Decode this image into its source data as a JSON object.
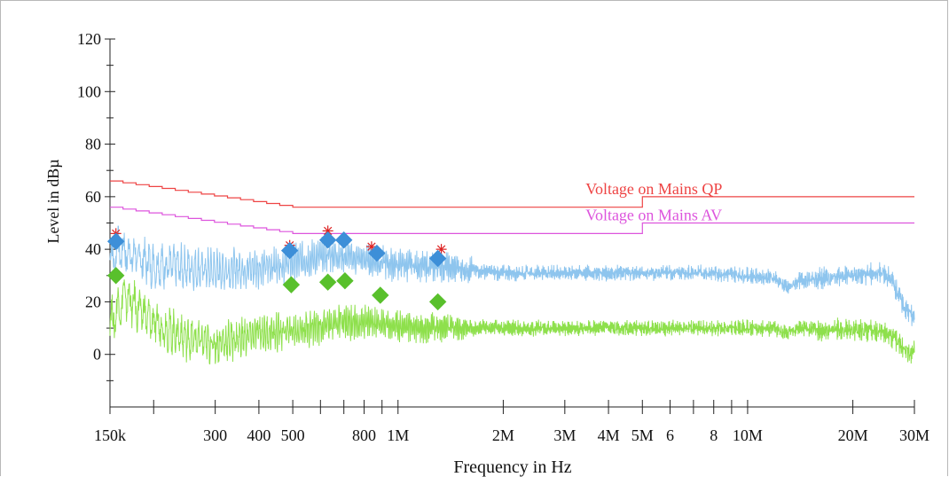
{
  "chart_data": {
    "type": "line",
    "xscale": "log",
    "xlim_hz": [
      150000,
      30000000
    ],
    "ylim": [
      -20,
      120
    ],
    "grid": false,
    "ylabel": "Level in dBµ",
    "xlabel": "Frequency in Hz",
    "x_tick_labels": [
      {
        "hz": 150000,
        "label": "150k"
      },
      {
        "hz": 300000,
        "label": "300"
      },
      {
        "hz": 400000,
        "label": "400"
      },
      {
        "hz": 500000,
        "label": "500"
      },
      {
        "hz": 800000,
        "label": "800"
      },
      {
        "hz": 1000000,
        "label": "1M"
      },
      {
        "hz": 2000000,
        "label": "2M"
      },
      {
        "hz": 3000000,
        "label": "3M"
      },
      {
        "hz": 4000000,
        "label": "4M"
      },
      {
        "hz": 5000000,
        "label": "5M"
      },
      {
        "hz": 6000000,
        "label": "6"
      },
      {
        "hz": 8000000,
        "label": "8"
      },
      {
        "hz": 10000000,
        "label": "10M"
      },
      {
        "hz": 20000000,
        "label": "20M"
      },
      {
        "hz": 30000000,
        "label": "30M"
      }
    ],
    "x_minor_ticks_hz": [
      200000,
      600000,
      700000,
      900000,
      7000000,
      9000000
    ],
    "y_ticks": [
      0,
      20,
      40,
      60,
      80,
      100,
      120
    ],
    "y_minor_ticks": [
      -10,
      10,
      30,
      50,
      70,
      90,
      110
    ],
    "limit_lines": [
      {
        "name": "Voltage on Mains QP",
        "color": "#ee4444",
        "points": [
          [
            150000,
            66
          ],
          [
            500000,
            56
          ],
          [
            5000000,
            56
          ],
          [
            5000000,
            60
          ],
          [
            30000000,
            60
          ]
        ]
      },
      {
        "name": "Voltage on Mains AV",
        "color": "#dd55dd",
        "points": [
          [
            150000,
            56
          ],
          [
            500000,
            46
          ],
          [
            5000000,
            46
          ],
          [
            5000000,
            50
          ],
          [
            30000000,
            50
          ]
        ]
      }
    ],
    "series": [
      {
        "color": "#8ec5ee",
        "envelope": [
          [
            150000,
            36
          ],
          [
            160000,
            40
          ],
          [
            200000,
            34
          ],
          [
            250000,
            33
          ],
          [
            300000,
            32
          ],
          [
            400000,
            33
          ],
          [
            500000,
            35
          ],
          [
            650000,
            38
          ],
          [
            800000,
            36
          ],
          [
            1000000,
            34
          ],
          [
            1400000,
            33
          ],
          [
            2000000,
            31
          ],
          [
            3000000,
            31
          ],
          [
            5000000,
            31
          ],
          [
            8000000,
            31
          ],
          [
            10000000,
            30
          ],
          [
            12000000,
            29
          ],
          [
            13000000,
            25
          ],
          [
            14000000,
            28
          ],
          [
            20000000,
            30
          ],
          [
            24000000,
            31
          ],
          [
            26000000,
            28
          ],
          [
            28000000,
            18
          ],
          [
            30000000,
            14
          ]
        ]
      },
      {
        "color": "#8ee04c",
        "envelope": [
          [
            150000,
            12
          ],
          [
            165000,
            22
          ],
          [
            200000,
            12
          ],
          [
            250000,
            6
          ],
          [
            300000,
            4
          ],
          [
            400000,
            8
          ],
          [
            500000,
            9
          ],
          [
            650000,
            12
          ],
          [
            800000,
            12
          ],
          [
            1000000,
            11
          ],
          [
            1400000,
            10
          ],
          [
            2000000,
            10
          ],
          [
            3000000,
            10
          ],
          [
            5000000,
            10
          ],
          [
            8000000,
            10
          ],
          [
            10000000,
            10
          ],
          [
            12000000,
            10
          ],
          [
            13000000,
            8
          ],
          [
            14000000,
            10
          ],
          [
            20000000,
            9
          ],
          [
            24000000,
            9
          ],
          [
            27000000,
            5
          ],
          [
            28500000,
            1
          ],
          [
            30000000,
            1
          ]
        ]
      }
    ],
    "markers": {
      "qp_peaks": {
        "symbol": "asterisk",
        "color": "#dd2222",
        "points": [
          [
            156000,
            46
          ],
          [
            490000,
            41.5
          ],
          [
            630000,
            47
          ],
          [
            840000,
            41
          ],
          [
            1330000,
            40
          ]
        ]
      },
      "qp_final": {
        "symbol": "diamond",
        "color": "#3d8fd8",
        "points": [
          [
            156000,
            43
          ],
          [
            490000,
            39.5
          ],
          [
            630000,
            43.5
          ],
          [
            700000,
            43.5
          ],
          [
            870000,
            38.5
          ],
          [
            1300000,
            36.5
          ]
        ]
      },
      "av_final": {
        "symbol": "diamond",
        "color": "#59c02c",
        "points": [
          [
            156000,
            30
          ],
          [
            495000,
            26.5
          ],
          [
            630000,
            27.5
          ],
          [
            705000,
            28
          ],
          [
            890000,
            22.5
          ],
          [
            1300000,
            20
          ]
        ]
      }
    }
  }
}
